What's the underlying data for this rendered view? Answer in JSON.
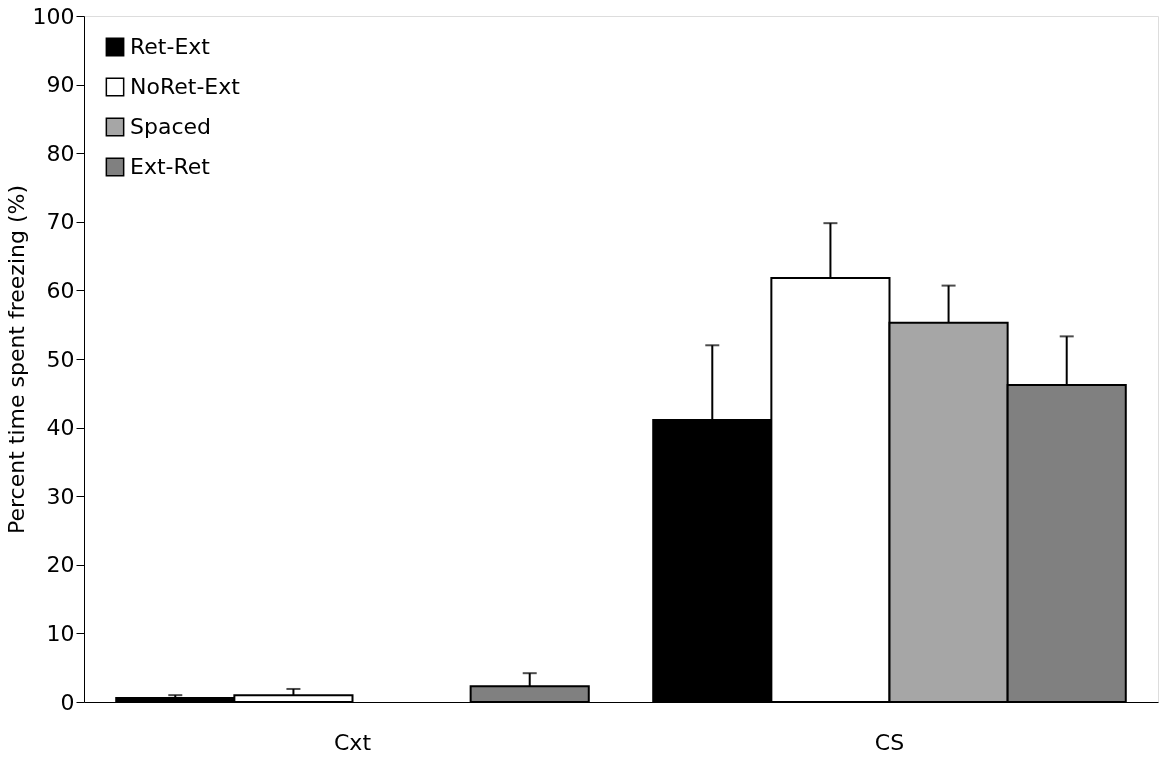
{
  "chart_data": {
    "type": "bar",
    "ylabel": "Percent time spent freezing (%)",
    "categories": [
      "Cxt",
      "CS"
    ],
    "series": [
      {
        "name": "Ret-Ext",
        "color": "#000000",
        "values": [
          0.6,
          41.1
        ],
        "errors": [
          0.4,
          10.9
        ]
      },
      {
        "name": "NoRet-Ext",
        "color": "#ffffff",
        "values": [
          1.0,
          61.8
        ],
        "errors": [
          0.9,
          8.0
        ]
      },
      {
        "name": "Spaced",
        "color": "#a6a6a6",
        "values": [
          0,
          55.3
        ],
        "errors": [
          null,
          5.4
        ]
      },
      {
        "name": "Ext-Ret",
        "color": "#808080",
        "values": [
          2.3,
          46.2
        ],
        "errors": [
          1.9,
          7.1
        ]
      }
    ],
    "ylim": [
      0,
      100
    ],
    "yticks": [
      0,
      10,
      20,
      30,
      40,
      50,
      60,
      70,
      80,
      90,
      100
    ],
    "grid": false,
    "legend": "top left"
  }
}
